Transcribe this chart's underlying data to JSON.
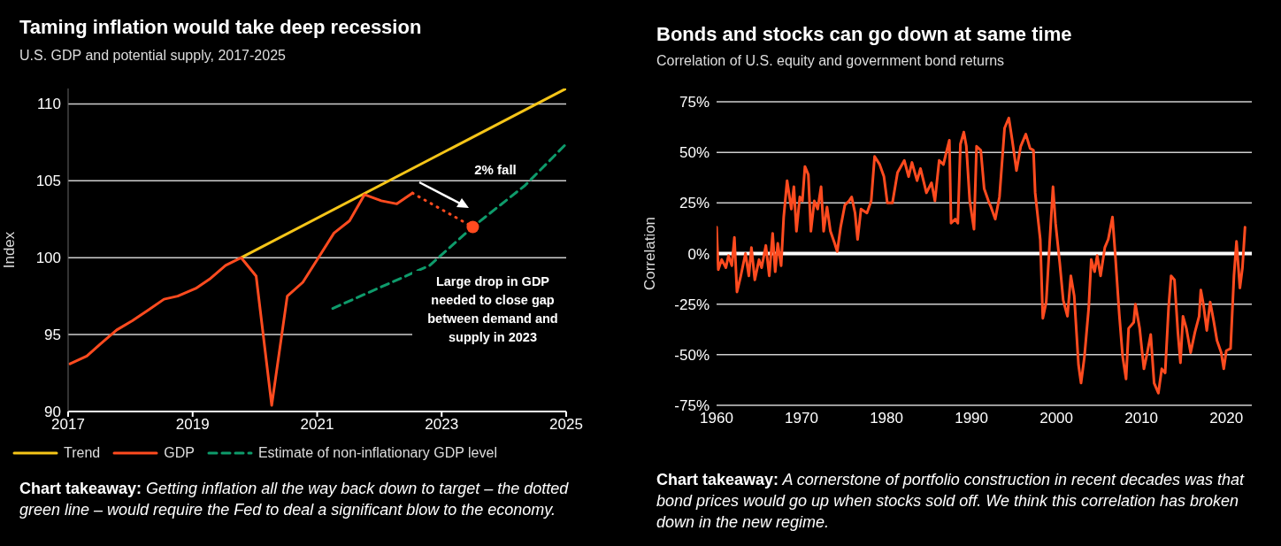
{
  "chart_data": [
    {
      "type": "line",
      "title": "Taming inflation would take deep recession",
      "subtitle": "U.S. GDP and potential supply, 2017-2025",
      "ylabel": "Index",
      "xlim": [
        2017,
        2025
      ],
      "xticks": [
        2017,
        2019,
        2021,
        2023,
        2025
      ],
      "ylim": [
        90,
        111
      ],
      "yticks": [
        90,
        95,
        100,
        105,
        110
      ],
      "grid": "y",
      "legend": "bottom",
      "series": [
        {
          "name": "Trend",
          "color": "#f5c518",
          "x": [
            2019.78,
            2025
          ],
          "values": [
            100,
            111
          ]
        },
        {
          "name": "GDP",
          "color": "#ff4b1f",
          "x": [
            2017.03,
            2017.3,
            2017.52,
            2017.78,
            2018.03,
            2018.29,
            2018.54,
            2018.76,
            2019.05,
            2019.27,
            2019.53,
            2019.78,
            2020.02,
            2020.27,
            2020.52,
            2020.77,
            2021.02,
            2021.27,
            2021.52,
            2021.76,
            2022.03,
            2022.28,
            2022.53
          ],
          "values": [
            93.1,
            93.6,
            94.4,
            95.3,
            95.9,
            96.6,
            97.3,
            97.5,
            98.0,
            98.6,
            99.5,
            100.0,
            98.8,
            90.4,
            97.5,
            98.4,
            100.0,
            101.6,
            102.4,
            104.1,
            103.7,
            103.5,
            104.2
          ]
        },
        {
          "color": "#ff4b1f",
          "line_style": "dotted",
          "x": [
            2022.53,
            2023.5
          ],
          "values": [
            104.2,
            102.0
          ]
        },
        {
          "type": "scatter",
          "marker": "circle",
          "color": "#ff4b1f",
          "x": [
            2023.5
          ],
          "values": [
            102.0
          ]
        },
        {
          "name": "Estimate of non-inflationary GDP level",
          "color": "#0e9b6b",
          "line_style": "dashed",
          "x": [
            2021.25,
            2022.81,
            2023.5,
            2024.34,
            2025
          ],
          "values": [
            96.7,
            99.5,
            102.0,
            104.7,
            107.4
          ]
        }
      ],
      "annotations": [
        "2% fall",
        "Large drop in GDP needed to close gap between demand and supply in 2023",
        "Chart takeaway:",
        "Getting inflation all the way back down to target – the dotted green line – would require the Fed to deal a significant blow to the economy."
      ]
    },
    {
      "type": "line",
      "title": "Bonds and stocks can go down at same time",
      "subtitle": "Correlation of U.S. equity and government bond returns",
      "ylabel": "Correlation",
      "xlim": [
        1960,
        2023
      ],
      "xticks": [
        1960,
        1970,
        1980,
        1990,
        2000,
        2010,
        2020
      ],
      "ylim": [
        -75,
        75
      ],
      "yticks": [
        {
          "value": -75,
          "label": "-75%"
        },
        {
          "value": -50,
          "label": "-50%"
        },
        {
          "value": -25,
          "label": "-25%"
        },
        {
          "value": 0,
          "label": "0%"
        },
        {
          "value": 25,
          "label": "25%"
        },
        {
          "value": 50,
          "label": "50%"
        },
        {
          "value": 75,
          "label": "75%"
        }
      ],
      "grid": "y",
      "ref_lines": [
        {
          "axis": "y",
          "value": 0,
          "color": "#ffffff"
        }
      ],
      "series": [
        {
          "color": "#ff4b1f",
          "x": [
            1960.0,
            1960.2,
            1960.6,
            1961.1,
            1961.4,
            1961.8,
            1962.1,
            1962.4,
            1962.8,
            1963.4,
            1963.8,
            1964.1,
            1964.5,
            1965.0,
            1965.3,
            1965.8,
            1966.2,
            1966.6,
            1966.9,
            1967.2,
            1967.6,
            1967.9,
            1968.3,
            1968.8,
            1969.1,
            1969.4,
            1969.8,
            1970.1,
            1970.4,
            1970.8,
            1971.1,
            1971.5,
            1971.9,
            1972.3,
            1972.6,
            1973.0,
            1973.4,
            1973.9,
            1974.2,
            1974.6,
            1975.1,
            1975.6,
            1975.9,
            1976.3,
            1976.6,
            1977.0,
            1977.7,
            1978.2,
            1978.6,
            1979.2,
            1979.7,
            1980.1,
            1980.7,
            1981.3,
            1982.1,
            1982.6,
            1983.0,
            1983.6,
            1984.0,
            1984.7,
            1985.3,
            1985.7,
            1986.2,
            1986.7,
            1987.1,
            1987.4,
            1987.6,
            1988.1,
            1988.4,
            1988.7,
            1989.1,
            1989.4,
            1989.8,
            1990.3,
            1990.6,
            1991.1,
            1991.5,
            1992.0,
            1992.3,
            1992.8,
            1993.3,
            1993.9,
            1994.4,
            1994.8,
            1995.3,
            1995.8,
            1996.4,
            1996.9,
            1997.3,
            1997.5,
            1998.1,
            1998.4,
            1998.8,
            1999.2,
            1999.6,
            1999.9,
            2000.4,
            2000.8,
            2001.3,
            2001.7,
            2002.1,
            2002.6,
            2002.9,
            2003.3,
            2003.8,
            2004.1,
            2004.5,
            2004.8,
            2005.2,
            2005.7,
            2006.1,
            2006.6,
            2006.9,
            2007.4,
            2007.8,
            2008.2,
            2008.5,
            2009.1,
            2009.3,
            2009.8,
            2010.3,
            2010.7,
            2011.1,
            2011.5,
            2012.0,
            2012.4,
            2012.8,
            2013.2,
            2013.5,
            2013.9,
            2014.3,
            2014.6,
            2014.9,
            2015.3,
            2015.8,
            2016.3,
            2016.8,
            2017.0,
            2017.3,
            2017.7,
            2018.1,
            2018.5,
            2018.9,
            2019.4,
            2019.7,
            2020.0,
            2020.5,
            2020.9,
            2021.2,
            2021.6,
            2021.9,
            2022.2
          ],
          "values": [
            13,
            -8,
            -3,
            -7,
            -1,
            -6,
            8,
            -19,
            -12,
            0,
            -11,
            3,
            -13,
            -3,
            -7,
            4,
            -11,
            10,
            -9,
            5,
            -6,
            18,
            36,
            22,
            33,
            11,
            28,
            26,
            43,
            39,
            11,
            26,
            22,
            33,
            11,
            23,
            11,
            5,
            1,
            13,
            24,
            26,
            28,
            20,
            7,
            22,
            20,
            26,
            48,
            44,
            38,
            25,
            25,
            40,
            46,
            38,
            45,
            36,
            42,
            30,
            35,
            26,
            46,
            44,
            51,
            56,
            15,
            17,
            15,
            54,
            60,
            53,
            26,
            12,
            53,
            51,
            32,
            26,
            23,
            17,
            28,
            62,
            67,
            56,
            41,
            53,
            59,
            52,
            51,
            30,
            7,
            -32,
            -24,
            5,
            33,
            15,
            -5,
            -23,
            -31,
            -11,
            -21,
            -55,
            -64,
            -51,
            -27,
            -3,
            -9,
            -1,
            -11,
            3,
            7,
            18,
            1,
            -30,
            -51,
            -62,
            -37,
            -34,
            -25,
            -37,
            -57,
            -49,
            -40,
            -64,
            -69,
            -57,
            -59,
            -27,
            -11,
            -13,
            -39,
            -54,
            -31,
            -37,
            -49,
            -39,
            -31,
            -18,
            -25,
            -38,
            -24,
            -33,
            -43,
            -49,
            -57,
            -48,
            -47,
            -11,
            6,
            -17,
            -7,
            13
          ]
        }
      ],
      "annotations": [
        "Chart takeaway:",
        "A cornerstone of portfolio construction in recent decades was that bond prices would go up when stocks sold off. We think this correlation has broken down in the new regime."
      ]
    }
  ]
}
